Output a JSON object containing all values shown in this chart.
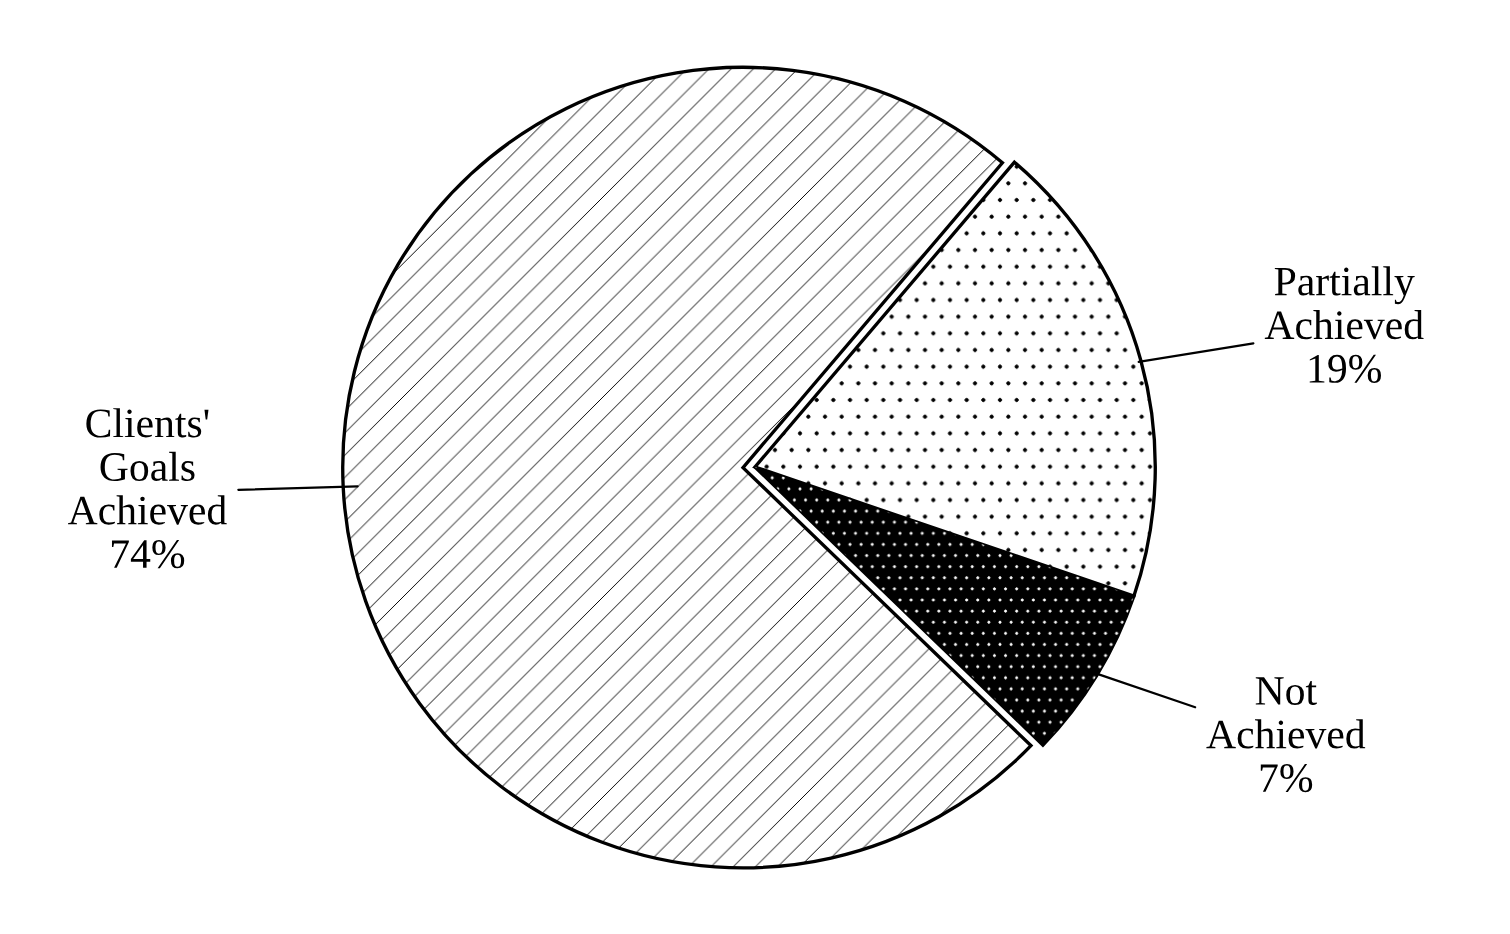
{
  "chart_data": {
    "type": "pie",
    "categories": [
      "Not\nAchieved",
      "Partially\nAchieved",
      "Clients'\nGoals\nAchieved"
    ],
    "values": [
      7,
      19,
      74
    ],
    "colors": [
      "#000000",
      "#ffffff",
      "#ffffff"
    ],
    "value_labels": [
      "7%",
      "19%",
      "74%"
    ]
  }
}
